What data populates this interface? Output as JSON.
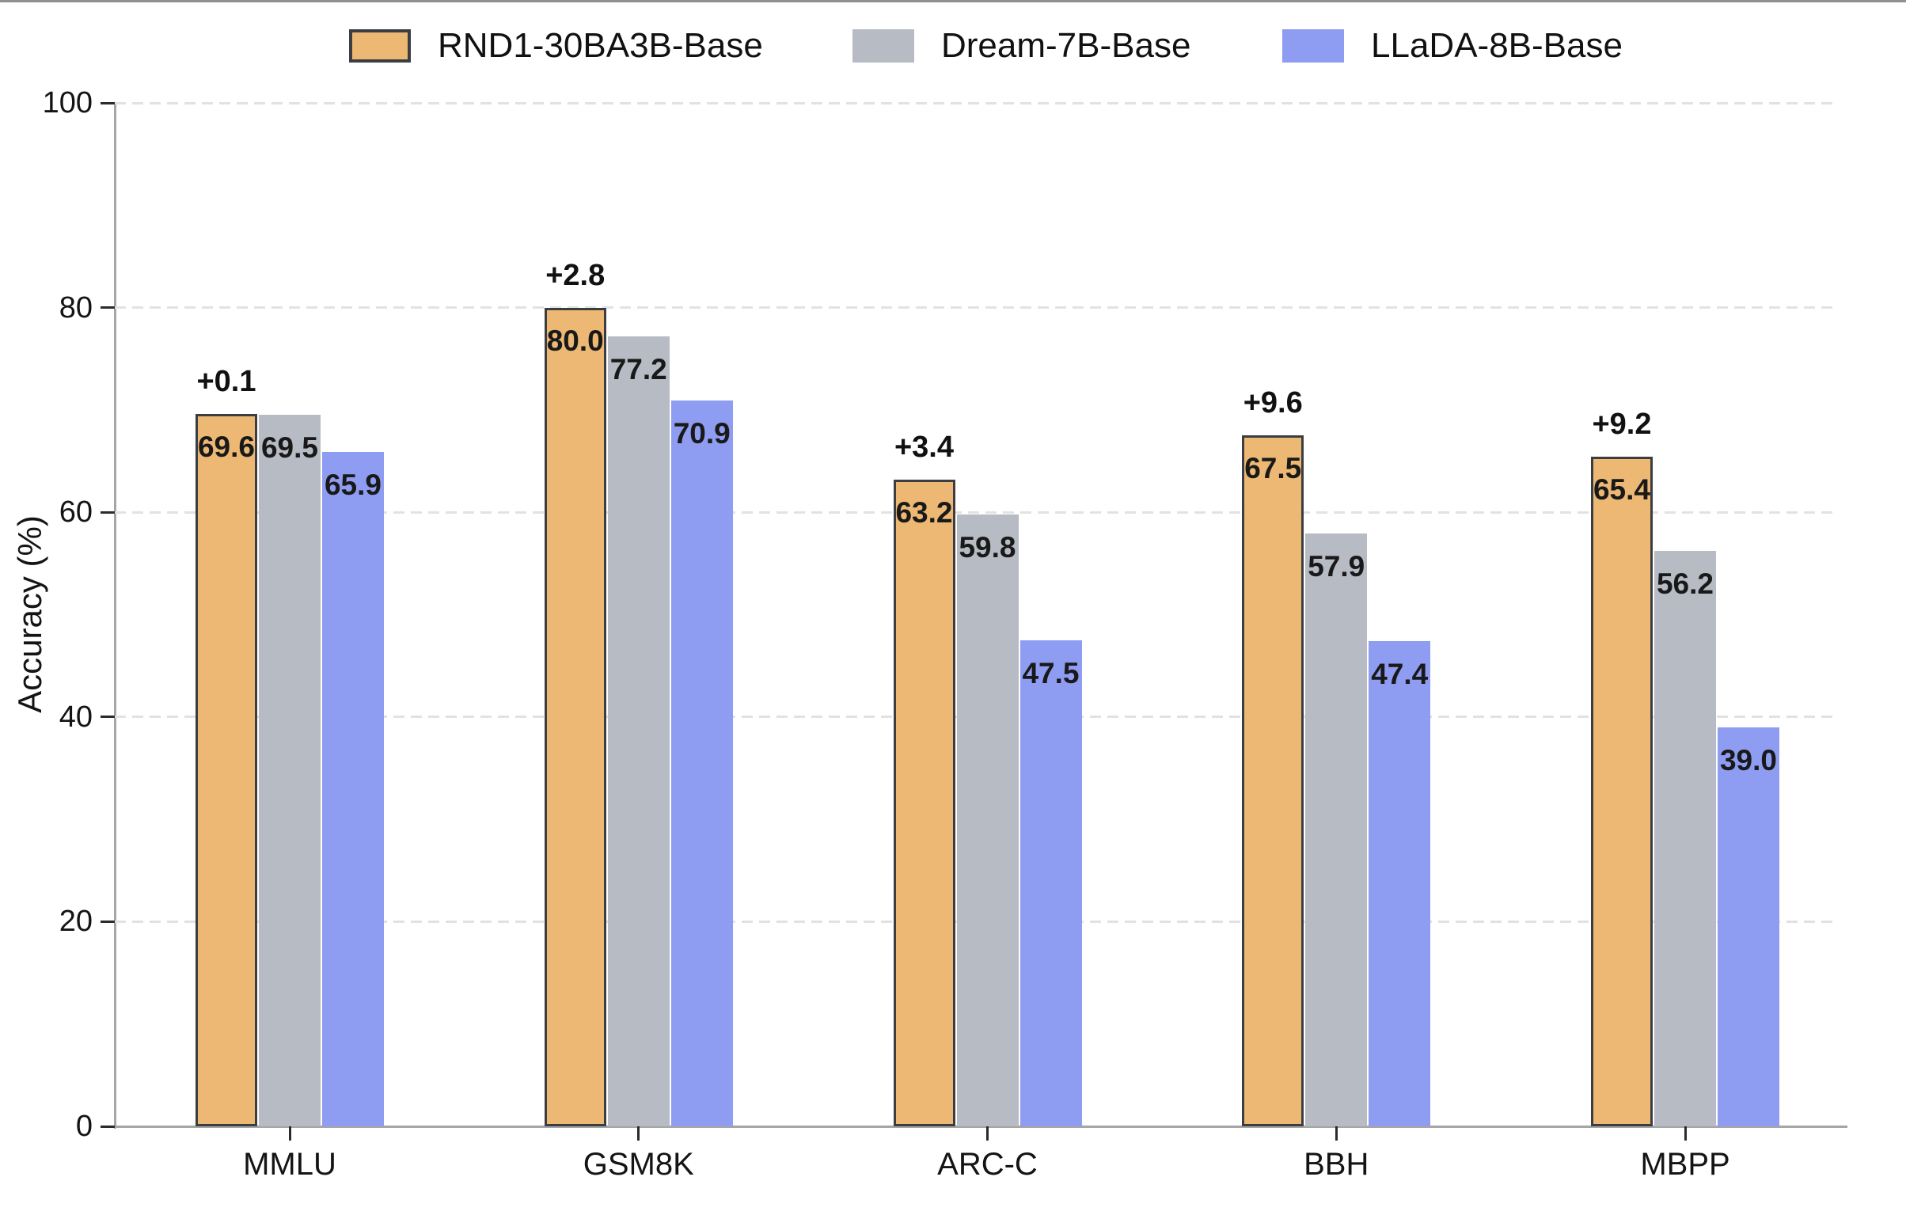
{
  "chart_data": {
    "type": "bar",
    "title": "",
    "xlabel": "",
    "ylabel": "Accuracy (%)",
    "ylim": [
      0,
      100
    ],
    "yticks": [
      0,
      20,
      40,
      60,
      80,
      100
    ],
    "grid": "horizontal dashed gridlines at y ticks",
    "legend_position": "top",
    "categories": [
      "MMLU",
      "GSM8K",
      "ARC-C",
      "BBH",
      "MBPP"
    ],
    "series": [
      {
        "name": "RND1-30BA3B-Base",
        "color": "#ECB873",
        "border_color": "#3A3E42",
        "values": [
          69.6,
          80.0,
          63.2,
          67.5,
          65.4
        ]
      },
      {
        "name": "Dream-7B-Base",
        "color": "#B7BBC4",
        "values": [
          69.5,
          77.2,
          59.8,
          57.9,
          56.2
        ]
      },
      {
        "name": "LLaDA-8B-Base",
        "color": "#8E9CF2",
        "values": [
          65.9,
          70.9,
          47.5,
          47.4,
          39.0
        ]
      }
    ],
    "delta_labels": {
      "series": "RND1-30BA3B-Base",
      "values": [
        "+0.1",
        "+2.8",
        "+3.4",
        "+9.6",
        "+9.2"
      ]
    }
  },
  "colors": {
    "background": "#FFFFFF",
    "axis_spine": "#A6A6A6",
    "tick_mark": "#2B2B2B",
    "gridline": "#E2E2E2",
    "text": "#141414",
    "top_border": "#8F8F8F"
  }
}
